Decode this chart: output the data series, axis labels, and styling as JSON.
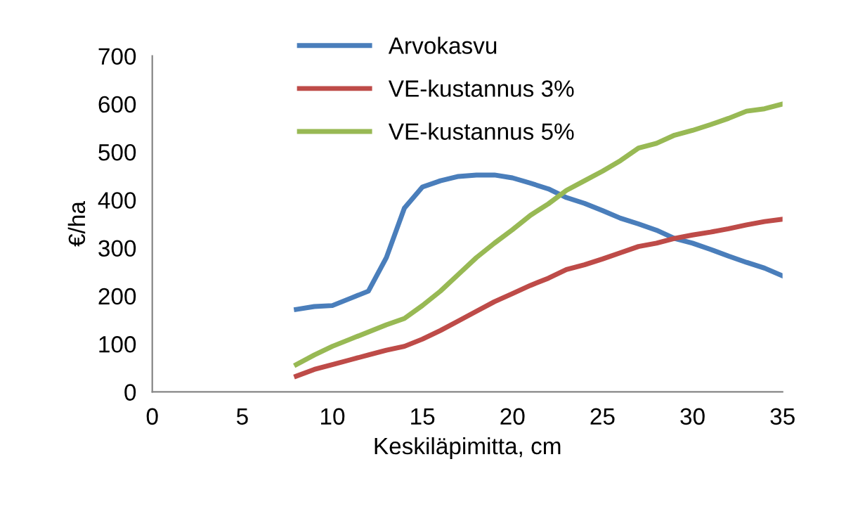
{
  "chart_data": {
    "type": "line",
    "xlabel": "Keskiläpimitta, cm",
    "ylabel": "€/ha",
    "x": [
      8,
      9,
      10,
      11,
      12,
      13,
      14,
      15,
      16,
      17,
      18,
      19,
      20,
      21,
      22,
      23,
      24,
      25,
      26,
      27,
      28,
      29,
      30,
      31,
      32,
      33,
      34,
      35
    ],
    "series": [
      {
        "name": "Arvokasvu",
        "color": "#4a7ebb",
        "values": [
          172,
          178,
          180,
          195,
          210,
          280,
          383,
          427,
          440,
          449,
          452,
          452,
          446,
          435,
          423,
          405,
          393,
          378,
          362,
          350,
          337,
          320,
          310,
          297,
          283,
          270,
          258,
          242
        ]
      },
      {
        "name": "VE-kustannus 3%",
        "color": "#be4b48",
        "values": [
          33,
          47,
          57,
          67,
          77,
          87,
          95,
          110,
          128,
          148,
          168,
          188,
          205,
          222,
          237,
          255,
          265,
          277,
          290,
          303,
          310,
          320,
          327,
          333,
          340,
          348,
          355,
          360
        ]
      },
      {
        "name": "VE-kustannus 5%",
        "color": "#98b954",
        "values": [
          57,
          77,
          95,
          110,
          125,
          140,
          153,
          180,
          210,
          245,
          280,
          310,
          338,
          368,
          392,
          420,
          440,
          460,
          482,
          508,
          518,
          535,
          545,
          557,
          570,
          585,
          590,
          600
        ]
      }
    ],
    "xlim": [
      0,
      35
    ],
    "xticks": [
      0,
      5,
      10,
      15,
      20,
      25,
      30,
      35
    ],
    "ylim": [
      0,
      700
    ],
    "yticks": [
      0,
      100,
      200,
      300,
      400,
      500,
      600,
      700
    ],
    "grid": false,
    "legend": "top left",
    "marker": "none",
    "line_style": "solid"
  }
}
